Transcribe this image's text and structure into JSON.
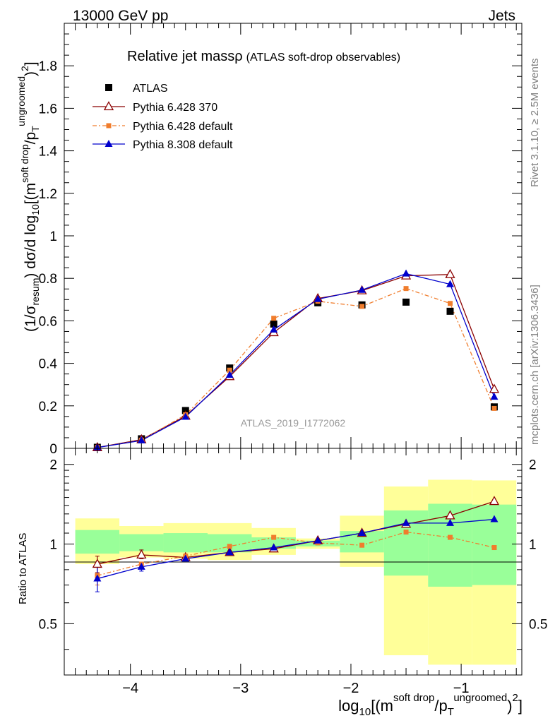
{
  "header": {
    "left": "13000 GeV pp",
    "right": "Jets"
  },
  "side_labels": {
    "rivet": "Rivet 3.1.10, ≥ 2.5M events",
    "source": "mcplots.cern.ch [arXiv:1306.3436]"
  },
  "colors": {
    "atlas": "#000000",
    "py6_370": "#8b0000",
    "py6_default": "#f07d2d",
    "py8_default": "#0000cc",
    "band_inner": "#99ff99",
    "band_outer": "#ffff99"
  },
  "chart_data": [
    {
      "type": "line",
      "title_main": "Relative jet massρ",
      "title_sub": "(ATLAS soft-drop observables)",
      "analysis_id": "ATLAS_2019_I1772062",
      "ylabel": "(1/σresum) dσ/d log10[(m soft drop/pT ungroomed)2]",
      "xlim": [
        -4.6,
        -0.45
      ],
      "ylim": [
        0,
        2.0
      ],
      "x_ticks": [
        -4,
        -3,
        -2,
        -1
      ],
      "y_ticks": [
        0,
        0.2,
        0.4,
        0.6,
        0.8,
        1,
        1.2,
        1.4,
        1.6,
        1.8
      ],
      "y_tick_labels": [
        "0",
        "0.2",
        "0.4",
        "0.6",
        "0.8",
        "1",
        "1.2",
        "1.4",
        "1.6",
        "1.8"
      ],
      "x": [
        -4.3,
        -3.9,
        -3.5,
        -3.1,
        -2.7,
        -2.3,
        -1.9,
        -1.5,
        -1.1,
        -0.7
      ],
      "bin_edges": [
        -4.5,
        -4.1,
        -3.7,
        -3.3,
        -2.9,
        -2.5,
        -2.1,
        -1.7,
        -1.3,
        -0.9,
        -0.5
      ],
      "series": [
        {
          "name": "ATLAS",
          "key": "atlas",
          "marker": "square",
          "values": [
            0.005,
            0.045,
            0.178,
            0.378,
            0.585,
            0.685,
            0.675,
            0.688,
            0.645,
            0.195
          ]
        },
        {
          "name": "Pythia 6.428 370",
          "key": "py6_370",
          "marker": "open-triangle",
          "values": [
            0.004,
            0.041,
            0.152,
            0.338,
            0.545,
            0.705,
            0.742,
            0.812,
            0.818,
            0.278
          ]
        },
        {
          "name": "Pythia 6.428 default",
          "key": "py6_default",
          "marker": "small-square",
          "values": [
            0.004,
            0.038,
            0.158,
            0.368,
            0.612,
            0.692,
            0.668,
            0.752,
            0.682,
            0.188
          ]
        },
        {
          "name": "Pythia 8.308 default",
          "key": "py8_default",
          "marker": "triangle",
          "values": [
            0.004,
            0.037,
            0.148,
            0.345,
            0.558,
            0.702,
            0.745,
            0.822,
            0.772,
            0.242
          ]
        }
      ]
    },
    {
      "type": "line",
      "ylabel": "Ratio to ATLAS",
      "xlabel": "log10[(m soft drop/pT ungroomed)2]",
      "xlim": [
        -4.6,
        -0.45
      ],
      "ylim": [
        0.32,
        2.3
      ],
      "y_ticks": [
        0.5,
        1,
        2
      ],
      "y_tick_labels": [
        "0.5",
        "1",
        "2"
      ],
      "x": [
        -4.3,
        -3.9,
        -3.5,
        -3.1,
        -2.7,
        -2.3,
        -1.9,
        -1.5,
        -1.1,
        -0.7
      ],
      "bin_edges": [
        -4.5,
        -4.1,
        -3.7,
        -3.3,
        -2.9,
        -2.5,
        -2.1,
        -1.7,
        -1.3,
        -0.9,
        -0.5
      ],
      "band_inner": [
        [
          0.92,
          1.13
        ],
        [
          0.94,
          1.09
        ],
        [
          0.93,
          1.1
        ],
        [
          0.93,
          1.09
        ],
        [
          0.96,
          1.06
        ],
        [
          0.98,
          1.03
        ],
        [
          0.93,
          1.12
        ],
        [
          0.76,
          1.34
        ],
        [
          0.69,
          1.42
        ],
        [
          0.7,
          1.41
        ]
      ],
      "band_outer": [
        [
          0.84,
          1.25
        ],
        [
          0.89,
          1.17
        ],
        [
          0.88,
          1.2
        ],
        [
          0.87,
          1.2
        ],
        [
          0.91,
          1.15
        ],
        [
          0.96,
          1.05
        ],
        [
          0.82,
          1.28
        ],
        [
          0.38,
          1.65
        ],
        [
          0.35,
          1.75
        ],
        [
          0.35,
          1.74
        ]
      ],
      "series": [
        {
          "name": "Pythia 6.428 370",
          "key": "py6_370",
          "marker": "open-triangle",
          "values": [
            0.84,
            0.91,
            0.89,
            0.93,
            0.96,
            1.03,
            1.1,
            1.19,
            1.28,
            1.45
          ]
        },
        {
          "name": "Pythia 6.428 default",
          "key": "py6_default",
          "marker": "small-square",
          "values": [
            0.76,
            0.84,
            0.9,
            0.98,
            1.06,
            1.01,
            0.99,
            1.11,
            1.06,
            0.97
          ]
        },
        {
          "name": "Pythia 8.308 default",
          "key": "py8_default",
          "marker": "triangle",
          "values": [
            0.74,
            0.82,
            0.88,
            0.93,
            0.97,
            1.03,
            1.1,
            1.2,
            1.2,
            1.24
          ]
        }
      ],
      "errors": [
        {
          "key": "py6_370",
          "index": 0,
          "range": [
            0.78,
            0.9
          ]
        },
        {
          "key": "py6_370",
          "index": 1,
          "range": [
            0.88,
            0.95
          ]
        },
        {
          "key": "py6_default",
          "index": 0,
          "range": [
            0.7,
            0.84
          ]
        },
        {
          "key": "py8_default",
          "index": 0,
          "range": [
            0.66,
            0.83
          ]
        },
        {
          "key": "py8_default",
          "index": 1,
          "range": [
            0.79,
            0.85
          ]
        }
      ]
    }
  ]
}
